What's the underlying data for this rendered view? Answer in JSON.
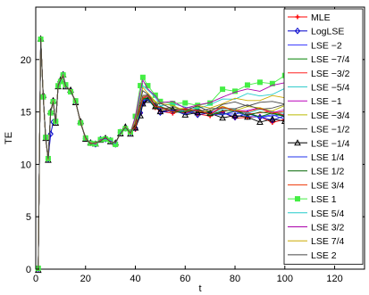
{
  "chart_data": {
    "type": "line",
    "title": "",
    "xlabel": "t",
    "ylabel": "TE",
    "xlim": [
      0,
      132
    ],
    "ylim": [
      0,
      25
    ],
    "xticks": [
      0,
      20,
      40,
      60,
      80,
      100,
      120
    ],
    "yticks": [
      0,
      5,
      10,
      15,
      20
    ],
    "grid": false,
    "legend_position": "top-right",
    "base_x": [
      1,
      2,
      3,
      4,
      5,
      6,
      7,
      8,
      9,
      10,
      11,
      12,
      14,
      16,
      18,
      20,
      22,
      24,
      26,
      28,
      30,
      32,
      34,
      36,
      38,
      40,
      42,
      43,
      45,
      48,
      50,
      55,
      60,
      65,
      70,
      75,
      80,
      85,
      90,
      95,
      100
    ],
    "base_y": [
      0,
      22,
      16.5,
      12.5,
      10.5,
      15,
      16,
      14,
      17.5,
      18,
      18.5,
      17.5,
      17,
      16,
      14,
      12.5,
      12,
      12,
      12.3,
      12.5,
      12.2,
      12,
      13,
      13.5,
      13,
      13.5,
      15,
      16,
      16.3,
      15.5,
      15.2,
      15.1,
      15.0,
      15.0,
      14.8,
      14.9,
      14.8,
      14.7,
      14.6,
      14.5,
      14.5
    ],
    "series": [
      {
        "name": "MLE",
        "color": "#ff0000",
        "marker": "star",
        "dip": 0,
        "spread": -0.3
      },
      {
        "name": "LogLSE",
        "color": "#0000cc",
        "marker": "diamond",
        "dip": 3,
        "spread": -0.1
      },
      {
        "name": "LSE −2",
        "color": "#3333ff",
        "marker": "",
        "dip": 0,
        "spread": 0.1
      },
      {
        "name": "LSE −7/4",
        "color": "#008000",
        "marker": "",
        "dip": 0,
        "spread": 0.2
      },
      {
        "name": "LSE −3/2",
        "color": "#ff2020",
        "marker": "",
        "dip": 0,
        "spread": 0.4
      },
      {
        "name": "LSE −5/4",
        "color": "#33cccc",
        "marker": "",
        "dip": 0,
        "spread": 0.55
      },
      {
        "name": "LSE −1",
        "color": "#bb00bb",
        "marker": "",
        "dip": 0,
        "spread": 0.7
      },
      {
        "name": "LSE −3/4",
        "color": "#bbbb00",
        "marker": "",
        "dip": 0,
        "spread": 0.9
      },
      {
        "name": "LSE −1/2",
        "color": "#555555",
        "marker": "",
        "dip": 0,
        "spread": 1.0
      },
      {
        "name": "LSE −1/4",
        "color": "#000000",
        "marker": "triangle",
        "dip": 0,
        "spread": -0.4
      },
      {
        "name": "LSE 1/4",
        "color": "#2233ee",
        "marker": "",
        "dip": 0,
        "spread": 0.0
      },
      {
        "name": "LSE 1/2",
        "color": "#006600",
        "marker": "",
        "dip": 0,
        "spread": 0.3
      },
      {
        "name": "LSE 3/4",
        "color": "#ee3300",
        "marker": "",
        "dip": 0,
        "spread": 0.6
      },
      {
        "name": "LSE 1",
        "color": "#44ee44",
        "marker": "square",
        "dip": 0,
        "spread": 3.8
      },
      {
        "name": "LSE 5/4",
        "color": "#22cccc",
        "marker": "",
        "dip": 0,
        "spread": 2.5
      },
      {
        "name": "LSE 3/2",
        "color": "#aa00aa",
        "marker": "",
        "dip": 0,
        "spread": 3.2
      },
      {
        "name": "LSE 7/4",
        "color": "#ccaa00",
        "marker": "",
        "dip": 0,
        "spread": 2.0
      },
      {
        "name": "LSE 2",
        "color": "#444444",
        "marker": "",
        "dip": 0,
        "spread": 1.5
      }
    ]
  }
}
